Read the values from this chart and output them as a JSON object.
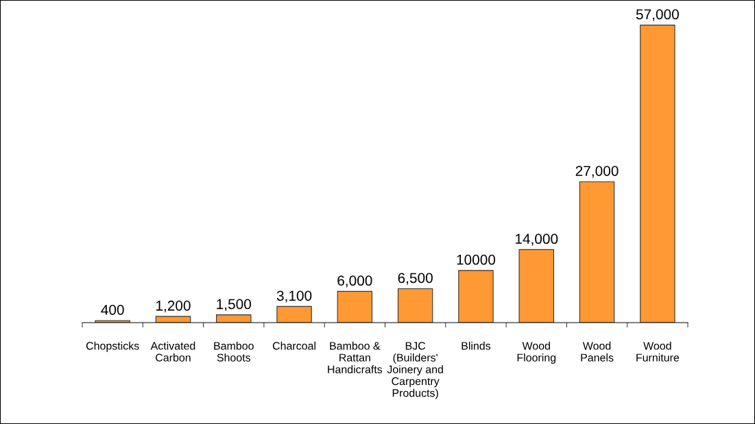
{
  "chart_data": {
    "type": "bar",
    "categories": [
      "Chopsticks",
      "Activated\nCarbon",
      "Bamboo\nShoots",
      "Charcoal",
      "Bamboo &\nRattan\nHandicrafts",
      "BJC\n(Builders'\nJoinery and\nCarpentry\nProducts)",
      "Blinds",
      "Wood\nFlooring",
      "Wood\nPanels",
      "Wood\nFurniture"
    ],
    "values": [
      400,
      1200,
      1500,
      3100,
      6000,
      6500,
      10000,
      14000,
      27000,
      57000
    ],
    "value_labels": [
      "400",
      "1,200",
      "1,500",
      "3,100",
      "6,000",
      "6,500",
      "10000",
      "14,000",
      "27,000",
      "57,000"
    ],
    "color": "#ff9933",
    "grid": false,
    "legend": false,
    "tick_labels": "x"
  }
}
